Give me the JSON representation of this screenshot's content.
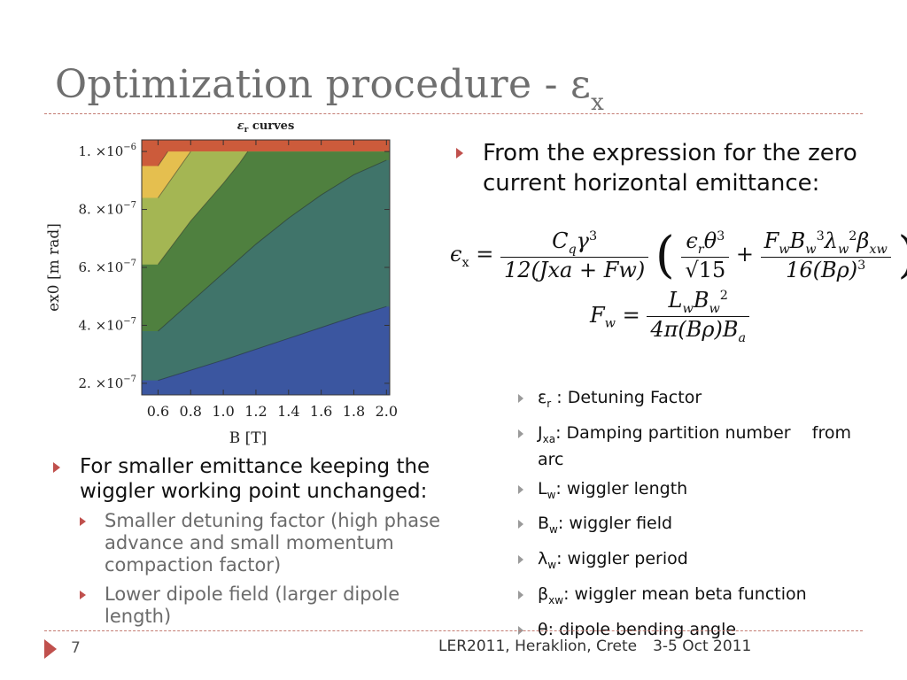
{
  "title": {
    "main": "Optimization procedure - ε",
    "sub": "x"
  },
  "chart_data": {
    "type": "heatmap",
    "title_prefix": "ε",
    "title_sub": "r",
    "title_suffix": " curves",
    "xlabel": "B [T]",
    "ylabel": "ex0 [m rad]",
    "xlim": [
      0.5,
      2.02
    ],
    "ylim": [
      1.6e-07,
      1.04e-06
    ],
    "x_ticks": [
      "0.6",
      "0.8",
      "1.0",
      "1.2",
      "1.4",
      "1.6",
      "1.8",
      "2.0"
    ],
    "x_tick_values": [
      0.6,
      0.8,
      1.0,
      1.2,
      1.4,
      1.6,
      1.8,
      2.0
    ],
    "y_ticks": [
      {
        "coef": "2.",
        "exp": "−7",
        "value": 2e-07
      },
      {
        "coef": "4.",
        "exp": "−7",
        "value": 4e-07
      },
      {
        "coef": "6.",
        "exp": "−7",
        "value": 6e-07
      },
      {
        "coef": "8.",
        "exp": "−7",
        "value": 8e-07
      },
      {
        "coef": "1.",
        "exp": "−6",
        "value": 1e-06
      }
    ],
    "y_tick_times": "×10",
    "contour_boundaries": [
      {
        "points": [
          [
            0.6,
            2.1e-07
          ],
          [
            1.0,
            2.8e-07
          ],
          [
            1.4,
            3.55e-07
          ],
          [
            1.8,
            4.3e-07
          ],
          [
            2.0,
            4.65e-07
          ]
        ]
      },
      {
        "points": [
          [
            0.6,
            3.8e-07
          ],
          [
            0.8,
            4.8e-07
          ],
          [
            1.0,
            5.8e-07
          ],
          [
            1.2,
            6.8e-07
          ],
          [
            1.4,
            7.7e-07
          ],
          [
            1.6,
            8.5e-07
          ],
          [
            1.8,
            9.2e-07
          ],
          [
            2.0,
            9.7e-07
          ]
        ]
      },
      {
        "points": [
          [
            0.6,
            6.1e-07
          ],
          [
            0.8,
            7.6e-07
          ],
          [
            1.0,
            8.9e-07
          ],
          [
            1.1,
            9.6e-07
          ],
          [
            1.15,
            1e-06
          ]
        ]
      },
      {
        "points": [
          [
            0.6,
            8.4e-07
          ],
          [
            0.75,
            9.6e-07
          ],
          [
            0.8,
            1e-06
          ]
        ]
      },
      {
        "points": [
          [
            0.6,
            9.5e-07
          ],
          [
            0.66,
            1e-06
          ]
        ]
      }
    ],
    "colors": [
      "#3b56a0",
      "#40746a",
      "#4f803f",
      "#a4b653",
      "#e5bf4f",
      "#cc5b3b"
    ]
  },
  "intro_bullet": "From the expression for the zero current horizontal emittance:",
  "formula": {
    "eps_x": "ϵ",
    "eps_x_sub": "x",
    "eq": "=",
    "f1_num": "C",
    "f1_num_sub": "q",
    "f1_num_gamma": "γ",
    "f1_num_exp": "3",
    "f1_den": "12(Jxa + Fw)",
    "f2_num_eps": "ϵ",
    "f2_num_eps_sub": "r",
    "f2_num_theta": "θ",
    "f2_num_exp": "3",
    "f2_den": "√15",
    "plus": "+",
    "f3_num": "F",
    "f3_num_w": "w",
    "f3_den": "16(Bρ)",
    "f3_den_exp": "3",
    "fw_lhs": "F",
    "fw_lhs_sub": "w",
    "fw_num": "L",
    "fw_num_w": "w",
    "fw_den": "4π(Bρ)B",
    "fw_den_sub": "a"
  },
  "definitions": [
    {
      "sym": "ε",
      "sub": "r",
      "text": " : Detuning Factor"
    },
    {
      "sym": "J",
      "sub": "xa",
      "text": ": Damping partition number    from arc"
    },
    {
      "sym": "L",
      "sub": "w",
      "text": ": wiggler length"
    },
    {
      "sym": "B",
      "sub": "w",
      "text": ": wiggler field"
    },
    {
      "sym": "λ",
      "sub": "w",
      "text": ": wiggler period"
    },
    {
      "sym": "β",
      "sub": "xw",
      "text": ": wiggler mean beta function"
    },
    {
      "sym": "θ",
      "sub": "",
      "text": ": dipole bending angle"
    }
  ],
  "left_bullet": "For smaller emittance keeping the wiggler working point unchanged:",
  "sub_bullets": [
    "Smaller detuning factor (high phase advance and small momentum compaction factor)",
    "Lower dipole field (larger dipole length)"
  ],
  "footer": {
    "page": "7",
    "event": "LER2011, Heraklion, Crete",
    "date": "3-5 Oct 2011"
  }
}
